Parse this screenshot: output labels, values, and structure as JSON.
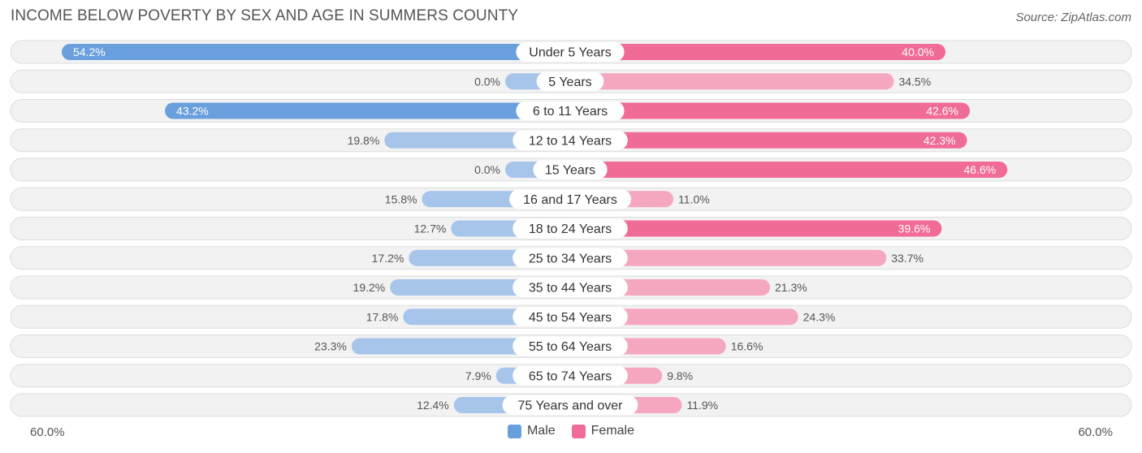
{
  "title": "INCOME BELOW POVERTY BY SEX AND AGE IN SUMMERS COUNTY",
  "source": "Source: ZipAtlas.com",
  "axis": {
    "left_label": "60.0%",
    "right_label": "60.0%"
  },
  "legend": {
    "male_label": "Male",
    "female_label": "Female"
  },
  "colors": {
    "male_dark": "#6a9fdd",
    "male_light": "#a7c5ea",
    "female_dark": "#f06b96",
    "female_light": "#f6a7c0",
    "row_bg": "#f2f2f2",
    "row_border": "#dddddd"
  },
  "chart_data": {
    "type": "bar",
    "orientation": "horizontal-diverging",
    "xlim": [
      -60,
      60
    ],
    "categories": [
      "Under 5 Years",
      "5 Years",
      "6 to 11 Years",
      "12 to 14 Years",
      "15 Years",
      "16 and 17 Years",
      "18 to 24 Years",
      "25 to 34 Years",
      "35 to 44 Years",
      "45 to 54 Years",
      "55 to 64 Years",
      "65 to 74 Years",
      "75 Years and over"
    ],
    "series": [
      {
        "name": "Male",
        "values": [
          54.2,
          0.0,
          43.2,
          19.8,
          0.0,
          15.8,
          12.7,
          17.2,
          19.2,
          17.8,
          23.3,
          7.9,
          12.4
        ],
        "labels": [
          "54.2%",
          "0.0%",
          "43.2%",
          "19.8%",
          "0.0%",
          "15.8%",
          "12.7%",
          "17.2%",
          "19.2%",
          "17.8%",
          "23.3%",
          "7.9%",
          "12.4%"
        ]
      },
      {
        "name": "Female",
        "values": [
          40.0,
          34.5,
          42.6,
          42.3,
          46.6,
          11.0,
          39.6,
          33.7,
          21.3,
          24.3,
          16.6,
          9.8,
          11.9
        ],
        "labels": [
          "40.0%",
          "34.5%",
          "42.6%",
          "42.3%",
          "46.6%",
          "11.0%",
          "39.6%",
          "33.7%",
          "21.3%",
          "24.3%",
          "16.6%",
          "9.8%",
          "11.9%"
        ]
      }
    ]
  }
}
